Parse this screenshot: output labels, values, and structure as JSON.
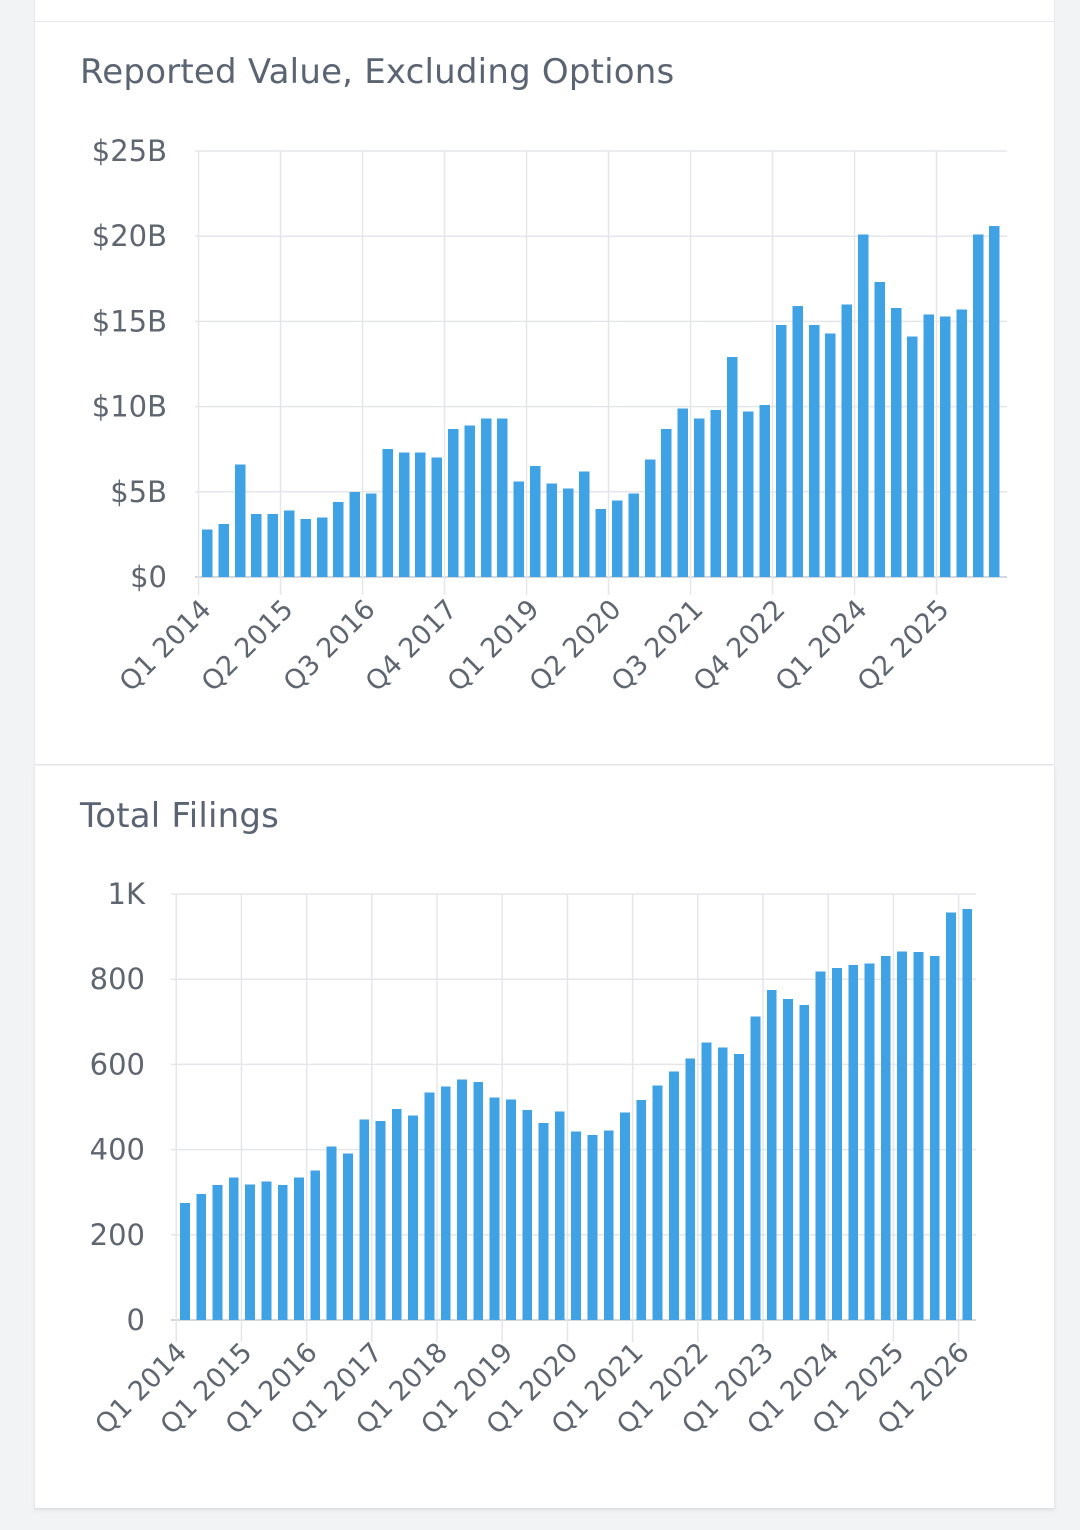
{
  "colors": {
    "bar": "#3fa2e4",
    "grid": "#e4e6e9"
  },
  "chart_data": [
    {
      "type": "bar",
      "title": "Reported Value, Excluding Options",
      "ylim": [
        0,
        25
      ],
      "yticks": [
        0,
        5,
        10,
        15,
        20,
        25
      ],
      "ytick_labels": [
        "$0",
        "$5B",
        "$10B",
        "$15B",
        "$20B",
        "$25B"
      ],
      "y_unit": "billions USD",
      "x_tick_labels": [
        "Q1 2014",
        "Q2 2015",
        "Q3 2016",
        "Q4 2017",
        "Q1 2019",
        "Q2 2020",
        "Q3 2021",
        "Q4 2022",
        "Q1 2024",
        "Q2 2025"
      ],
      "grid": true,
      "values": [
        2.8,
        3.1,
        6.6,
        3.7,
        3.7,
        3.9,
        3.4,
        3.5,
        4.4,
        5.0,
        4.9,
        7.5,
        7.3,
        7.3,
        7.0,
        8.7,
        8.9,
        9.3,
        9.3,
        5.6,
        6.5,
        5.5,
        5.2,
        6.2,
        4.0,
        4.5,
        4.9,
        6.9,
        8.7,
        9.9,
        9.3,
        9.8,
        12.9,
        9.7,
        10.1,
        14.8,
        15.9,
        14.8,
        14.3,
        16.0,
        20.1,
        17.3,
        15.8,
        14.1,
        15.4,
        15.3,
        15.7,
        20.1,
        20.6
      ]
    },
    {
      "type": "bar",
      "title": "Total Filings",
      "ylim": [
        0,
        1000
      ],
      "yticks": [
        0,
        200,
        400,
        600,
        800,
        1000
      ],
      "ytick_labels": [
        "0",
        "200",
        "400",
        "600",
        "800",
        "1K"
      ],
      "x_tick_labels": [
        "Q1 2014",
        "Q1 2015",
        "Q1 2016",
        "Q1 2017",
        "Q1 2018",
        "Q1 2019",
        "Q1 2020",
        "Q1 2021",
        "Q1 2022",
        "Q1 2023",
        "Q1 2024",
        "Q1 2025",
        "Q1 2026"
      ],
      "grid": true,
      "values": [
        275,
        296,
        317,
        334,
        318,
        325,
        317,
        335,
        351,
        407,
        391,
        471,
        467,
        495,
        480,
        534,
        548,
        564,
        559,
        522,
        518,
        493,
        463,
        490,
        442,
        434,
        445,
        487,
        516,
        550,
        583,
        614,
        651,
        640,
        624,
        713,
        775,
        754,
        740,
        818,
        826,
        833,
        837,
        855,
        865,
        864,
        854,
        957,
        965
      ]
    }
  ]
}
